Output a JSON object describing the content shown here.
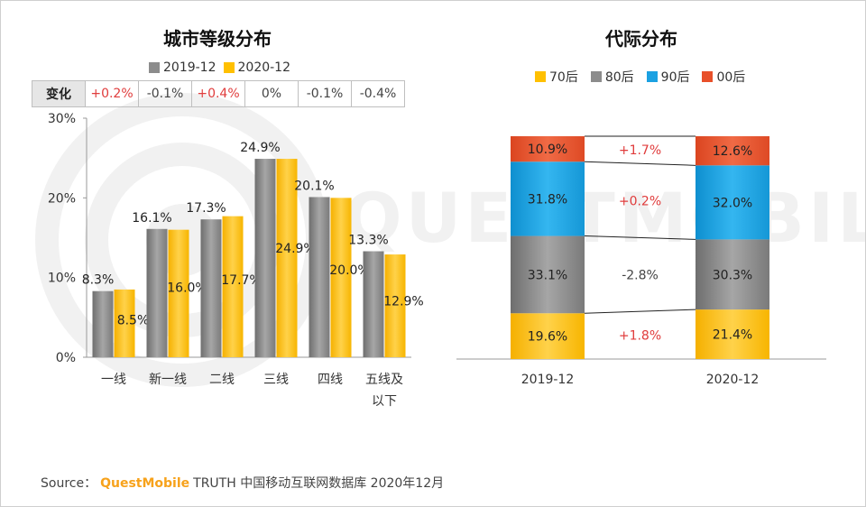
{
  "watermark_text": "QUESTMOBILE",
  "left_chart": {
    "title": "城市等级分布",
    "legend": [
      "2019-12",
      "2020-12"
    ],
    "change_row": {
      "label": "变化",
      "values": [
        "+0.2%",
        "-0.1%",
        "+0.4%",
        "0%",
        "-0.1%",
        "-0.4%"
      ]
    }
  },
  "right_chart": {
    "title": "代际分布",
    "legend": [
      "70后",
      "80后",
      "90后",
      "00后"
    ],
    "changes": [
      "+1.8%",
      "-2.8%",
      "+0.2%",
      "+1.7%"
    ]
  },
  "source": {
    "prefix": "Source：",
    "brand": "QuestMobile",
    "suffix": "TRUTH 中国移动互联网数据库 2020年12月"
  },
  "colors": {
    "gray": "#8c8c8c",
    "yellow": "#ffc000",
    "blue": "#1ba1e2",
    "red": "#e8502a",
    "positive": "#e03c3c",
    "negative": "#444444"
  },
  "chart_data": [
    {
      "type": "bar",
      "title": "城市等级分布",
      "categories": [
        "一线",
        "新一线",
        "二线",
        "三线",
        "四线",
        "五线及以下"
      ],
      "ylim": [
        0,
        30
      ],
      "yticks": [
        "0%",
        "10%",
        "20%",
        "30%"
      ],
      "series": [
        {
          "name": "2019-12",
          "values": [
            8.3,
            16.1,
            17.3,
            24.9,
            20.1,
            13.3
          ],
          "labels": [
            "8.3%",
            "16.1%",
            "17.3%",
            "24.9%",
            "20.1%",
            "13.3%"
          ]
        },
        {
          "name": "2020-12",
          "values": [
            8.5,
            16.0,
            17.7,
            24.9,
            20.0,
            12.9
          ],
          "labels": [
            "8.5%",
            "16.0%",
            "17.7%",
            "24.9%",
            "20.0%",
            "12.9%"
          ]
        }
      ],
      "legend": "top"
    },
    {
      "type": "bar",
      "stacked": true,
      "title": "代际分布",
      "categories": [
        "2019-12",
        "2020-12"
      ],
      "series": [
        {
          "name": "70后",
          "values": [
            19.6,
            21.4
          ],
          "labels": [
            "19.6%",
            "21.4%"
          ]
        },
        {
          "name": "80后",
          "values": [
            33.1,
            30.3
          ],
          "labels": [
            "33.1%",
            "30.3%"
          ]
        },
        {
          "name": "90后",
          "values": [
            31.8,
            32.0
          ],
          "labels": [
            "31.8%",
            "32.0%"
          ]
        },
        {
          "name": "00后",
          "values": [
            10.9,
            12.6
          ],
          "labels": [
            "10.9%",
            "12.6%"
          ]
        }
      ],
      "legend": "top"
    }
  ]
}
